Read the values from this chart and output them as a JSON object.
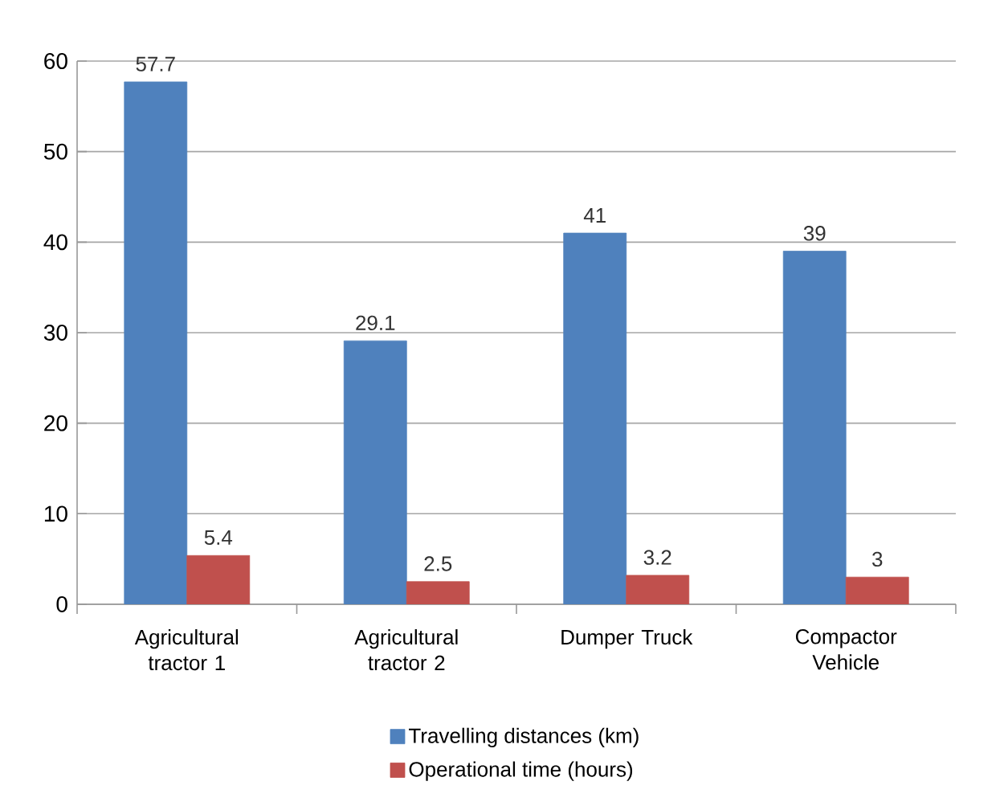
{
  "chart_data": {
    "type": "bar",
    "categories": [
      "Agricultural tractor 1",
      "Agricultural tractor 2",
      "Dumper Truck",
      "Compactor Vehicle"
    ],
    "series": [
      {
        "name": "Travelling distances (km)",
        "color": "#4f81bd",
        "values": [
          57.7,
          29.1,
          41,
          39
        ]
      },
      {
        "name": "Operational time (hours)",
        "color": "#c0504d",
        "values": [
          5.4,
          2.5,
          3.2,
          3
        ]
      }
    ],
    "ylim": [
      0,
      60
    ],
    "yticks": [
      0,
      10,
      20,
      30,
      40,
      50,
      60
    ],
    "grid": "y",
    "legend": "bottom",
    "data_labels": true
  }
}
